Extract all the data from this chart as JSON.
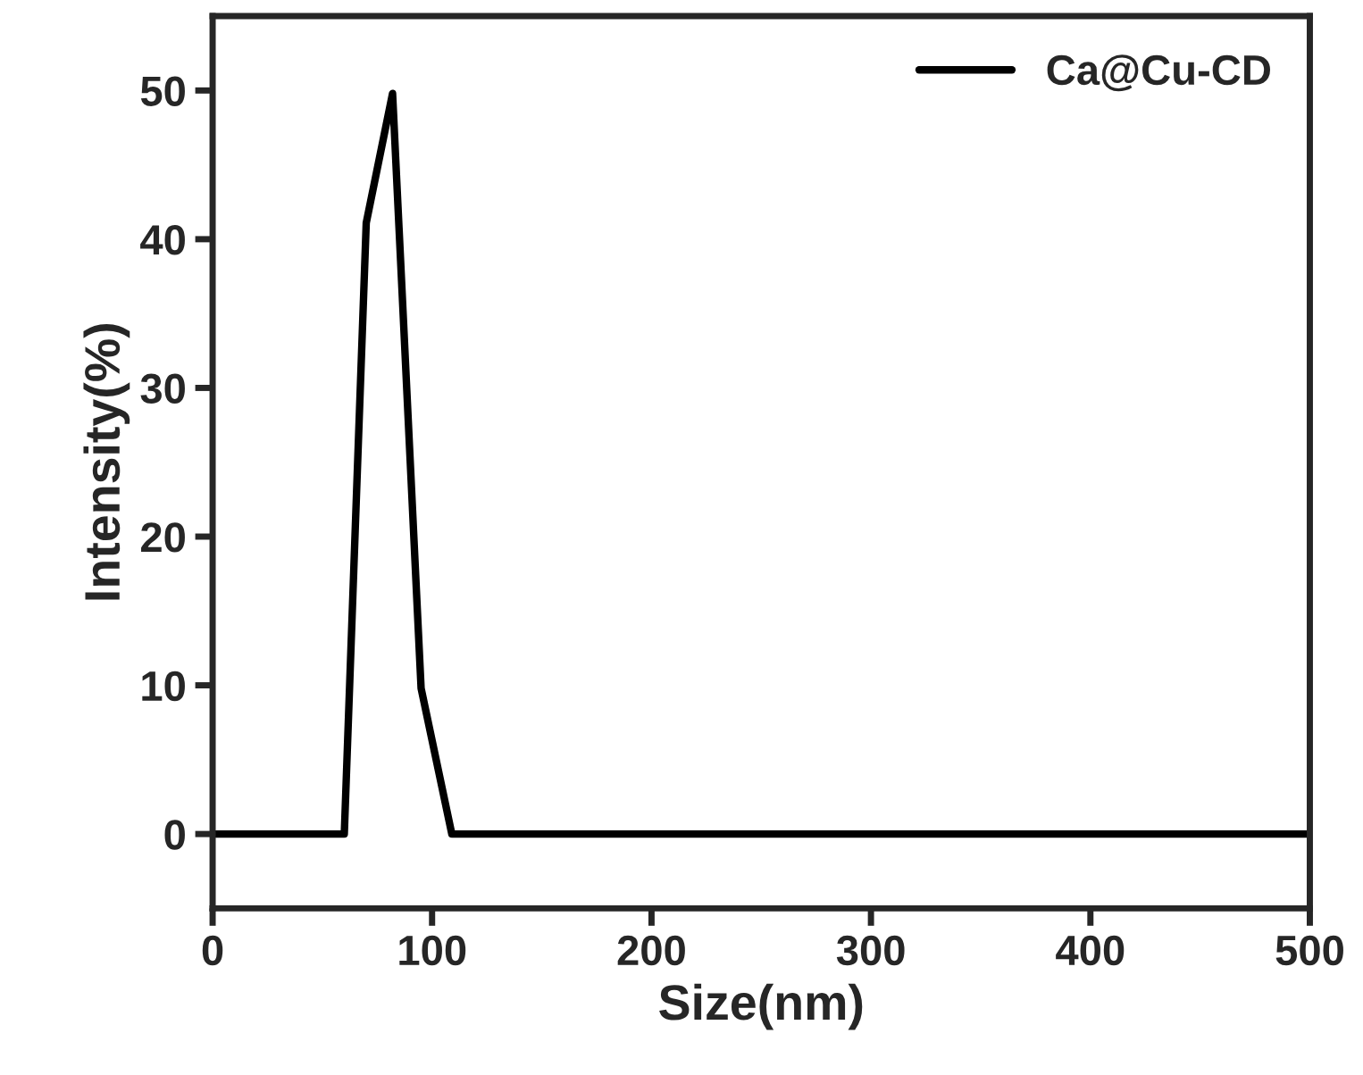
{
  "chart_data": {
    "type": "line",
    "xlabel": "Size(nm)",
    "ylabel": "Intensity(%)",
    "series": [
      {
        "name": "Ca@Cu-CD",
        "color": "#000000",
        "x": [
          0,
          60,
          70,
          82,
          95,
          109,
          500
        ],
        "values": [
          0,
          0,
          41.1,
          49.8,
          9.8,
          0,
          0
        ]
      }
    ],
    "xlim": [
      0,
      500
    ],
    "xticks": [
      0,
      100,
      200,
      300,
      400,
      500
    ],
    "ylim": [
      -5,
      55
    ],
    "yticks": [
      0,
      10,
      20,
      30,
      40,
      50
    ],
    "legend": "top right",
    "grid": false,
    "marker": "none",
    "line_style": "solid"
  }
}
